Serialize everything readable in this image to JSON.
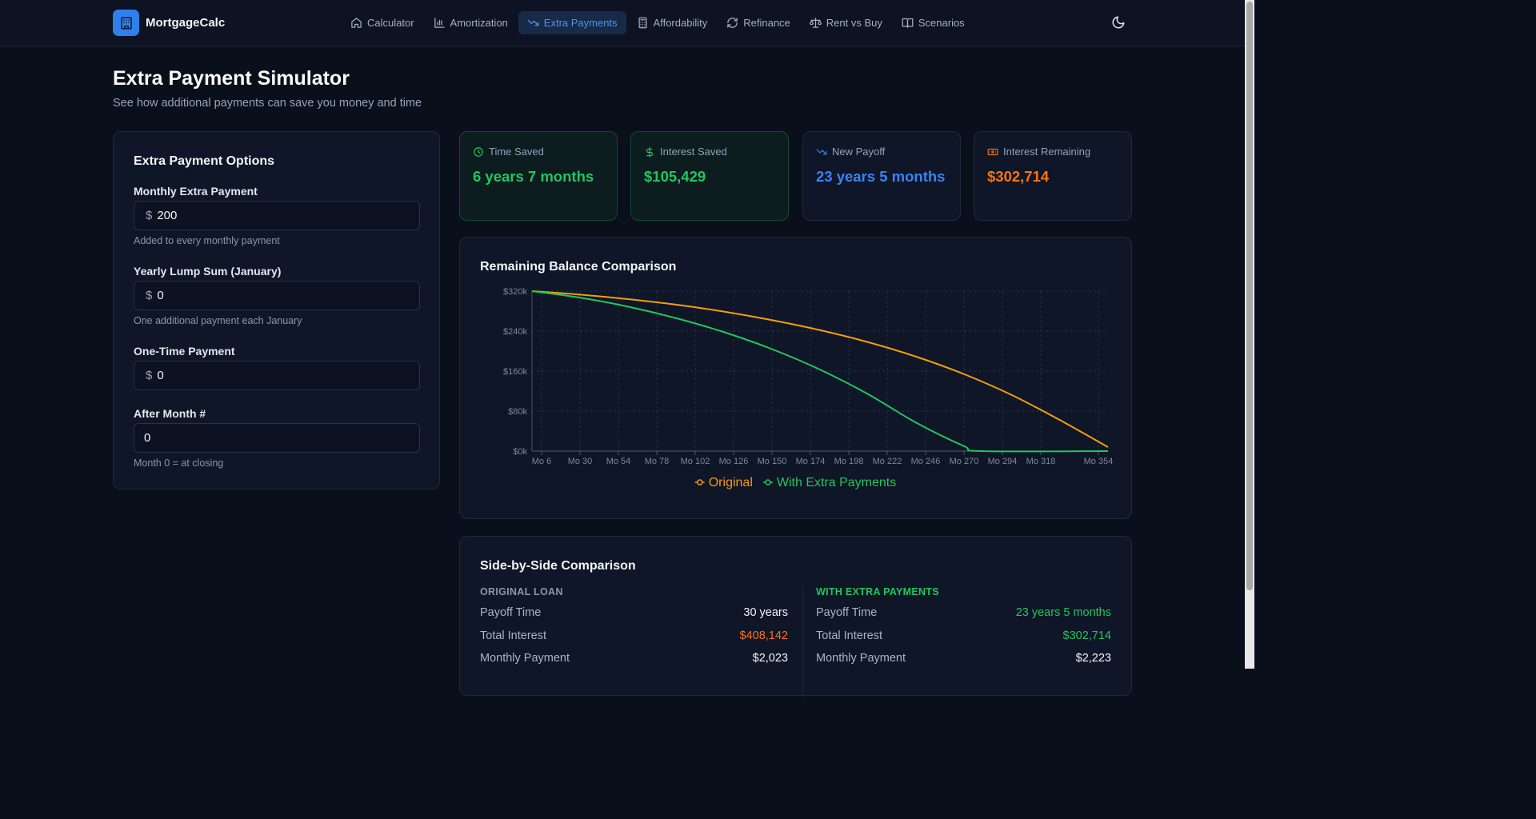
{
  "nav": {
    "brand": "MortgageCalc",
    "items": [
      {
        "label": "Calculator",
        "icon": "home-icon"
      },
      {
        "label": "Amortization",
        "icon": "bar-chart-icon"
      },
      {
        "label": "Extra Payments",
        "icon": "trending-down-icon",
        "active": true
      },
      {
        "label": "Affordability",
        "icon": "calculator-icon"
      },
      {
        "label": "Refinance",
        "icon": "refresh-icon"
      },
      {
        "label": "Rent vs Buy",
        "icon": "scale-icon"
      },
      {
        "label": "Scenarios",
        "icon": "book-icon"
      }
    ],
    "theme_icon": "moon-icon"
  },
  "page": {
    "title": "Extra Payment Simulator",
    "subtitle": "See how additional payments can save you money and time"
  },
  "options": {
    "title": "Extra Payment Options",
    "monthly": {
      "label": "Monthly Extra Payment",
      "value": "200",
      "help": "Added to every monthly payment"
    },
    "yearly": {
      "label": "Yearly Lump Sum (January)",
      "value": "0",
      "help": "One additional payment each January"
    },
    "onetime": {
      "label": "One-Time Payment",
      "value": "0"
    },
    "after_month": {
      "label": "After Month #",
      "value": "0",
      "help": "Month 0 = at closing"
    },
    "currency_symbol": "$"
  },
  "stats": [
    {
      "label": "Time Saved",
      "value": "6 years 7 months",
      "color": "#22c55e",
      "icon": "clock-icon"
    },
    {
      "label": "Interest Saved",
      "value": "$105,429",
      "color": "#22c55e",
      "icon": "dollar-icon"
    },
    {
      "label": "New Payoff",
      "value": "23 years 5 months",
      "color": "#3b82f6",
      "icon": "trending-down-icon"
    },
    {
      "label": "Interest Remaining",
      "value": "$302,714",
      "color": "#f97316",
      "icon": "banknote-icon"
    }
  ],
  "chart_title": "Remaining Balance Comparison",
  "chart_data": {
    "type": "line",
    "title": "Remaining Balance Comparison",
    "y_ticks": [
      "$320k",
      "$240k",
      "$160k",
      "$80k",
      "$0k"
    ],
    "ylim": [
      0,
      320000
    ],
    "x_ticks": [
      "Mo 6",
      "Mo 30",
      "Mo 54",
      "Mo 78",
      "Mo 102",
      "Mo 126",
      "Mo 150",
      "Mo 174",
      "Mo 198",
      "Mo 222",
      "Mo 246",
      "Mo 270",
      "Mo 294",
      "Mo 318",
      "Mo 354"
    ],
    "x_tick_months": [
      6,
      30,
      54,
      78,
      102,
      126,
      150,
      174,
      198,
      222,
      246,
      270,
      294,
      318,
      354
    ],
    "xlim": [
      0,
      360
    ],
    "grid": true,
    "legend_position": "bottom",
    "series": [
      {
        "name": "Original",
        "color": "#f59e0b",
        "x": [
          0,
          30,
          60,
          90,
          120,
          150,
          180,
          210,
          240,
          270,
          300,
          330,
          360
        ],
        "y": [
          320000,
          313000,
          304000,
          293000,
          279000,
          262000,
          242000,
          218000,
          189000,
          154000,
          112000,
          62000,
          8000
        ]
      },
      {
        "name": "With Extra Payments",
        "color": "#22c55e",
        "x": [
          0,
          30,
          60,
          90,
          120,
          150,
          180,
          210,
          240,
          270,
          281,
          360
        ],
        "y": [
          320000,
          307000,
          289000,
          266000,
          238000,
          204000,
          163000,
          114000,
          57000,
          10000,
          0,
          0
        ]
      }
    ]
  },
  "comparison": {
    "title": "Side-by-Side Comparison",
    "original": {
      "heading": "ORIGINAL LOAN",
      "rows": [
        {
          "label": "Payoff Time",
          "value": "30 years",
          "color": "#f1f5f9"
        },
        {
          "label": "Total Interest",
          "value": "$408,142",
          "color": "#f97316"
        },
        {
          "label": "Monthly Payment",
          "value": "$2,023",
          "color": "#f1f5f9"
        }
      ]
    },
    "extra": {
      "heading": "WITH EXTRA PAYMENTS",
      "rows": [
        {
          "label": "Payoff Time",
          "value": "23 years 5 months",
          "color": "#22c55e"
        },
        {
          "label": "Total Interest",
          "value": "$302,714",
          "color": "#22c55e"
        },
        {
          "label": "Monthly Payment",
          "value": "$2,223",
          "color": "#f1f5f9"
        }
      ]
    }
  }
}
